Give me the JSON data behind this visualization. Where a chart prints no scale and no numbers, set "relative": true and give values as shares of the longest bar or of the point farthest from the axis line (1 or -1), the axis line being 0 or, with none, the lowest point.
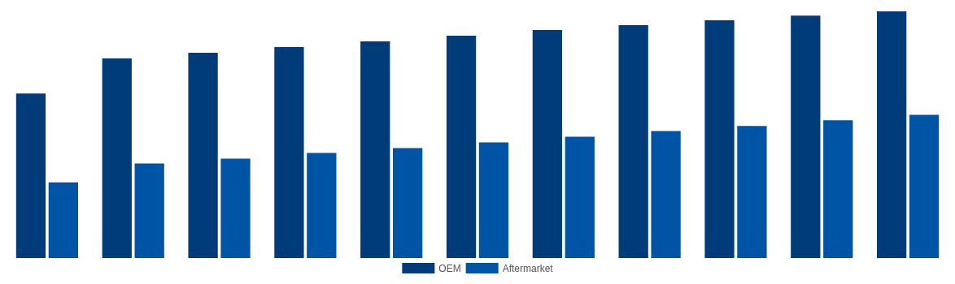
{
  "chart_data": {
    "type": "bar",
    "relative": true,
    "categories": [
      null,
      null,
      null,
      null,
      null,
      null,
      null,
      null,
      null,
      null,
      null
    ],
    "legend": "bottom",
    "grid": false,
    "series": [
      {
        "name": "OEM",
        "color": "#003b7a",
        "values": [
          0.667,
          0.809,
          0.832,
          0.855,
          0.878,
          0.901,
          0.924,
          0.944,
          0.964,
          0.983,
          1
        ]
      },
      {
        "name": "Aftermarket",
        "color": "#0054a6",
        "values": [
          0.307,
          0.383,
          0.403,
          0.426,
          0.446,
          0.469,
          0.492,
          0.515,
          0.535,
          0.558,
          0.581
        ]
      }
    ]
  }
}
